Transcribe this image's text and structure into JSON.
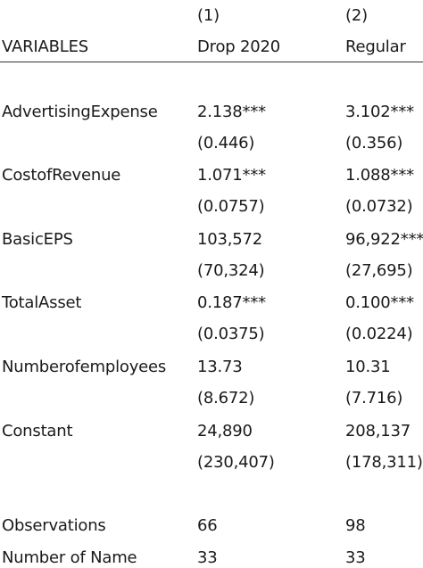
{
  "header": {
    "col_numbers": [
      "(1)",
      "(2)"
    ],
    "variables_label": "VARIABLES",
    "col_names": [
      "Drop 2020",
      "Regular"
    ]
  },
  "rows": [
    {
      "label": "AdvertisingExpense",
      "coef": [
        "2.138***",
        "3.102***"
      ],
      "se": [
        "(0.446)",
        "(0.356)"
      ]
    },
    {
      "label": "CostofRevenue",
      "coef": [
        "1.071***",
        "1.088***"
      ],
      "se": [
        "(0.0757)",
        "(0.0732)"
      ]
    },
    {
      "label": "BasicEPS",
      "coef": [
        "103,572",
        "96,922***"
      ],
      "se": [
        "(70,324)",
        "(27,695)"
      ]
    },
    {
      "label": "TotalAsset",
      "coef": [
        "0.187***",
        "0.100***"
      ],
      "se": [
        "(0.0375)",
        "(0.0224)"
      ]
    },
    {
      "label": "Numberofemployees",
      "coef": [
        "13.73",
        "10.31"
      ],
      "se": [
        "(8.672)",
        "(7.716)"
      ]
    },
    {
      "label": "Constant",
      "coef": [
        "24,890",
        "208,137"
      ],
      "se": [
        "(230,407)",
        "(178,311)"
      ]
    }
  ],
  "footer": [
    {
      "label": "Observations",
      "values": [
        "66",
        "98"
      ]
    },
    {
      "label": "Number of Name",
      "values": [
        "33",
        "33"
      ]
    }
  ]
}
